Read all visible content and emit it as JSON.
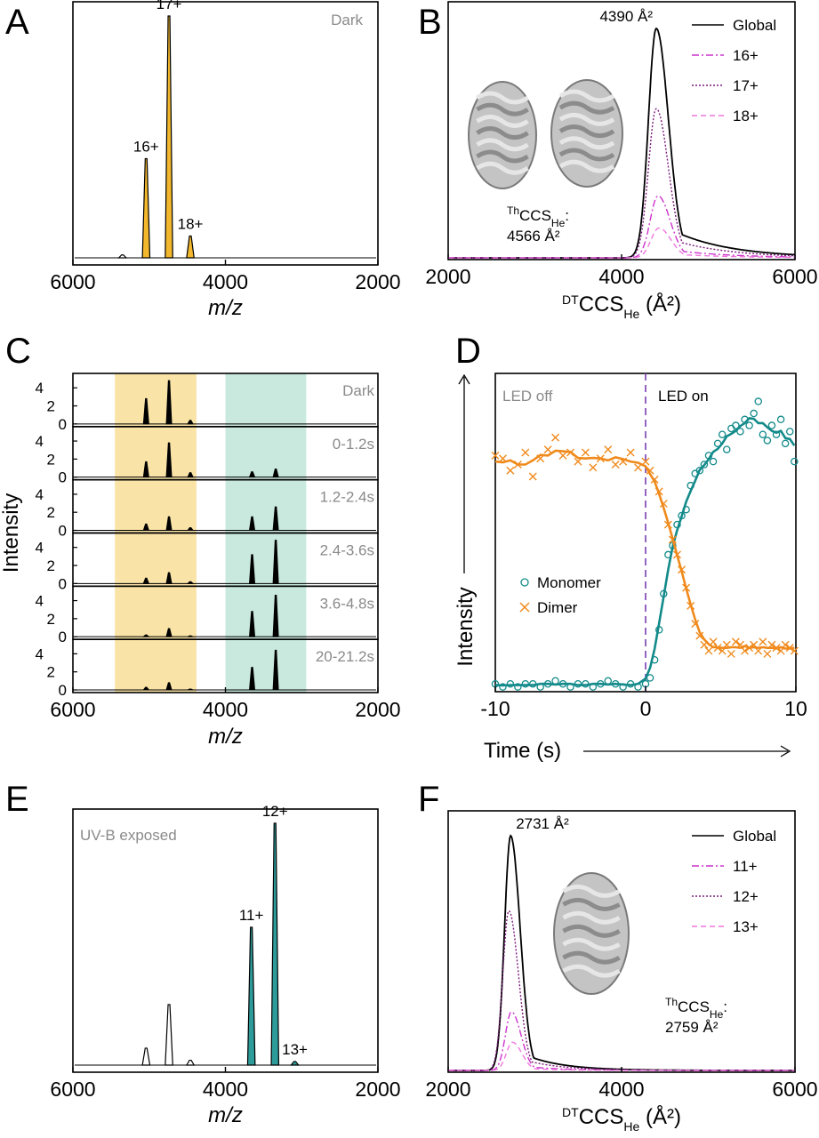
{
  "chart_data": [
    {
      "panel": "A",
      "type": "line",
      "xlabel": "m/z",
      "x_reversed": true,
      "xlim": [
        6000,
        2000
      ],
      "xticks": [
        6000,
        4000,
        2000
      ],
      "annotation": "Dark",
      "fill_color": "#f2b72c",
      "peaks": [
        {
          "x": 5040,
          "height": 0.41,
          "label": "16+",
          "filled": true
        },
        {
          "x": 4740,
          "height": 1.0,
          "label": "17+",
          "filled": true
        },
        {
          "x": 4460,
          "height": 0.09,
          "label": "18+",
          "filled": true
        },
        {
          "x": 5350,
          "height": 0.012,
          "label": "",
          "filled": false
        }
      ]
    },
    {
      "panel": "B",
      "type": "line",
      "xlabel_main": "CCS",
      "xlabel_sup": "DT",
      "xlabel_sub": "He",
      "xlabel_tail": " (Å²)",
      "xlim": [
        2000,
        6000
      ],
      "xticks": [
        2000,
        4000,
        6000
      ],
      "peak_label": "4390 Å²",
      "theory_sup": "Th",
      "theory_main": "CCS",
      "theory_sub": "He",
      "theory_colon": ":",
      "theory_value": "4566 Å²",
      "legend_position": "top-right",
      "series": [
        {
          "name": "Global",
          "center": 4400,
          "height": 1.0,
          "color": "#000000",
          "dash": "solid"
        },
        {
          "name": "16+",
          "center": 4420,
          "height": 0.27,
          "color": "#cc33cc",
          "dash": "dashdot"
        },
        {
          "name": "17+",
          "center": 4400,
          "height": 0.65,
          "color": "#7a1a7a",
          "dash": "dotted"
        },
        {
          "name": "18+",
          "center": 4430,
          "height": 0.13,
          "color": "#ee77dd",
          "dash": "dashed"
        }
      ]
    },
    {
      "panel": "C",
      "type": "line",
      "ylabel": "Intensity",
      "xlabel": "m/z",
      "xlim": [
        6000,
        2000
      ],
      "xticks": [
        6000,
        4000,
        2000
      ],
      "yticks": [
        0,
        2,
        4
      ],
      "ylim": [
        0,
        5.5
      ],
      "bands": [
        {
          "from": 5450,
          "to": 4380,
          "color": "#fae3a6"
        },
        {
          "from": 4000,
          "to": 2940,
          "color": "#c9e9df"
        }
      ],
      "rows": [
        {
          "label": "Dark",
          "peaks": [
            5040,
            4740,
            4460,
            3650,
            3340
          ],
          "heights": [
            2.8,
            4.8,
            0.4,
            0.0,
            0.0
          ]
        },
        {
          "label": "0-1.2s",
          "peaks": [
            5040,
            4740,
            4460,
            3650,
            3340
          ],
          "heights": [
            1.7,
            3.8,
            0.5,
            0.6,
            0.9
          ]
        },
        {
          "label": "1.2-2.4s",
          "peaks": [
            5040,
            4740,
            4460,
            3650,
            3340
          ],
          "heights": [
            0.7,
            1.5,
            0.3,
            1.5,
            2.6
          ]
        },
        {
          "label": "2.4-3.6s",
          "peaks": [
            5040,
            4740,
            4460,
            3650,
            3340
          ],
          "heights": [
            0.6,
            1.2,
            0.2,
            3.2,
            4.8
          ]
        },
        {
          "label": "3.6-4.8s",
          "peaks": [
            5040,
            4740,
            4460,
            3650,
            3340
          ],
          "heights": [
            0.2,
            0.9,
            0.1,
            2.8,
            4.6
          ]
        },
        {
          "label": "20-21.2s",
          "peaks": [
            5040,
            4740,
            4460,
            3650,
            3340
          ],
          "heights": [
            0.3,
            0.8,
            0.1,
            2.5,
            4.4
          ]
        }
      ]
    },
    {
      "panel": "D",
      "type": "scatter",
      "xlabel": "Time (s)",
      "ylabel": "Intensity",
      "xlim": [
        -10,
        10
      ],
      "xticks": [
        -10,
        0,
        10
      ],
      "region_off": "LED off",
      "region_on": "LED on",
      "series": [
        {
          "name": "Monomer",
          "color": "#138a8a",
          "marker": "circle",
          "x": [
            -10,
            -9.5,
            -9,
            -8.5,
            -8,
            -7.5,
            -7,
            -6.5,
            -6,
            -5.5,
            -5,
            -4.5,
            -4,
            -3.5,
            -3,
            -2.5,
            -2,
            -1.5,
            -1,
            -0.5,
            0,
            0.3,
            0.6,
            0.9,
            1.2,
            1.5,
            1.8,
            2.1,
            2.4,
            2.7,
            3,
            3.3,
            3.6,
            3.9,
            4.2,
            4.5,
            4.8,
            5.1,
            5.4,
            5.7,
            6,
            6.3,
            6.6,
            6.9,
            7.2,
            7.5,
            7.8,
            8.1,
            8.4,
            8.7,
            9,
            9.3,
            9.6,
            9.9
          ],
          "y": [
            0.02,
            0.01,
            0.02,
            0.01,
            0.02,
            0.02,
            0.01,
            0.02,
            0.03,
            0.02,
            0.01,
            0.02,
            0.02,
            0.01,
            0.02,
            0.03,
            0.02,
            0.01,
            0.02,
            0.01,
            0.02,
            0.04,
            0.1,
            0.2,
            0.32,
            0.45,
            0.48,
            0.55,
            0.58,
            0.6,
            0.68,
            0.72,
            0.73,
            0.75,
            0.78,
            0.76,
            0.82,
            0.85,
            0.8,
            0.87,
            0.88,
            0.86,
            0.9,
            0.88,
            0.92,
            0.96,
            0.85,
            0.83,
            0.88,
            0.85,
            0.9,
            0.82,
            0.86,
            0.76
          ]
        },
        {
          "name": "Dimer",
          "color": "#f08a1c",
          "marker": "x",
          "x": [
            -10,
            -9.5,
            -9,
            -8.5,
            -8,
            -7.5,
            -7,
            -6.5,
            -6,
            -5.5,
            -5,
            -4.5,
            -4,
            -3.5,
            -3,
            -2.5,
            -2,
            -1.5,
            -1,
            -0.5,
            0,
            0.3,
            0.6,
            0.9,
            1.2,
            1.5,
            1.8,
            2.1,
            2.4,
            2.7,
            3,
            3.3,
            3.6,
            3.9,
            4.2,
            4.5,
            4.8,
            5.1,
            5.4,
            5.7,
            6,
            6.3,
            6.6,
            6.9,
            7.2,
            7.5,
            7.8,
            8.1,
            8.4,
            8.7,
            9,
            9.3,
            9.6,
            9.9
          ],
          "y": [
            0.78,
            0.77,
            0.73,
            0.75,
            0.79,
            0.71,
            0.77,
            0.8,
            0.84,
            0.78,
            0.79,
            0.76,
            0.79,
            0.74,
            0.77,
            0.8,
            0.75,
            0.76,
            0.79,
            0.74,
            0.76,
            0.73,
            0.7,
            0.66,
            0.62,
            0.55,
            0.5,
            0.45,
            0.4,
            0.34,
            0.28,
            0.22,
            0.18,
            0.15,
            0.13,
            0.16,
            0.14,
            0.13,
            0.15,
            0.12,
            0.16,
            0.15,
            0.13,
            0.14,
            0.15,
            0.13,
            0.16,
            0.12,
            0.15,
            0.14,
            0.13,
            0.15,
            0.14,
            0.13
          ]
        }
      ],
      "legend_position": "center-left"
    },
    {
      "panel": "E",
      "type": "line",
      "xlabel": "m/z",
      "xlim": [
        6000,
        2000
      ],
      "xticks": [
        6000,
        4000,
        2000
      ],
      "annotation": "UV-B exposed",
      "fill_color": "#2e9b9b",
      "peaks": [
        {
          "x": 5040,
          "height": 0.07,
          "label": "",
          "filled": false
        },
        {
          "x": 4740,
          "height": 0.25,
          "label": "",
          "filled": false
        },
        {
          "x": 4460,
          "height": 0.02,
          "label": "",
          "filled": false
        },
        {
          "x": 3660,
          "height": 0.57,
          "label": "11+",
          "filled": true
        },
        {
          "x": 3350,
          "height": 1.0,
          "label": "12+",
          "filled": true
        },
        {
          "x": 3090,
          "height": 0.015,
          "label": "13+",
          "filled": true
        }
      ]
    },
    {
      "panel": "F",
      "type": "line",
      "xlabel_main": "CCS",
      "xlabel_sup": "DT",
      "xlabel_sub": "He",
      "xlabel_tail": " (Å²)",
      "xlim": [
        2000,
        6000
      ],
      "xticks": [
        2000,
        4000,
        6000
      ],
      "peak_label": "2731 Å²",
      "theory_sup": "Th",
      "theory_main": "CCS",
      "theory_sub": "He",
      "theory_colon": ":",
      "theory_value": "2759 Å²",
      "legend_position": "top-right",
      "series": [
        {
          "name": "Global",
          "center": 2720,
          "height": 1.0,
          "color": "#000000",
          "dash": "solid"
        },
        {
          "name": "11+",
          "center": 2730,
          "height": 0.25,
          "color": "#cc33cc",
          "dash": "dashdot"
        },
        {
          "name": "12+",
          "center": 2700,
          "height": 0.68,
          "color": "#7a1a7a",
          "dash": "dotted"
        },
        {
          "name": "13+",
          "center": 2740,
          "height": 0.12,
          "color": "#ee77dd",
          "dash": "dashed"
        }
      ]
    }
  ],
  "panels": {
    "a": "A",
    "b": "B",
    "c": "C",
    "d": "D",
    "e": "E",
    "f": "F"
  }
}
